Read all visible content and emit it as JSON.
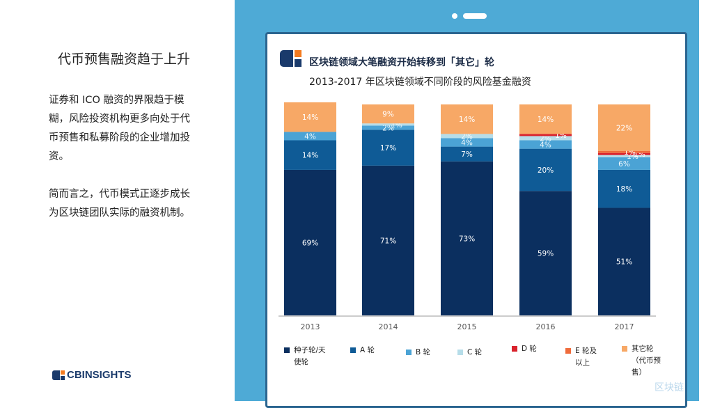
{
  "slide": {
    "title": "代币预售融资趋于上升",
    "para1": "证券和 ICO 融资的界限趋于模糊，风险投资机构更多向处于代币预售和私募阶段的企业增加投资。",
    "para2": "简而言之，代币模式正逐步成长为区块链团队实际的融资机制。",
    "logo_text": "CBINSIGHTS",
    "watermark": "区块链"
  },
  "chart_data": {
    "type": "bar",
    "stacked": true,
    "title": "区块链领域大笔融资开始转移到「其它」轮",
    "subtitle": "2013-2017 年区块链领域不同阶段的风险基金融资",
    "categories": [
      "2013",
      "2014",
      "2015",
      "2016",
      "2017"
    ],
    "ylim": [
      0,
      100
    ],
    "series": [
      {
        "name": "种子轮/天使轮",
        "color": "#0b2f5f",
        "values": [
          69,
          71,
          73,
          59,
          51
        ]
      },
      {
        "name": "A 轮",
        "color": "#0f5b96",
        "values": [
          14,
          17,
          7,
          20,
          18
        ]
      },
      {
        "name": "B 轮",
        "color": "#4ba3d5",
        "values": [
          4,
          2,
          4,
          4,
          6
        ]
      },
      {
        "name": "C 轮",
        "color": "#b6dde9",
        "values": [
          0,
          1,
          2,
          2,
          1
        ]
      },
      {
        "name": "D 轮",
        "color": "#d9232d",
        "values": [
          0,
          0,
          0,
          1,
          1
        ]
      },
      {
        "name": "E 轮及以上",
        "color": "#ef6b3b",
        "values": [
          0,
          0,
          0,
          0,
          1
        ]
      },
      {
        "name": "其它轮（代币预售）",
        "color": "#f7a866",
        "values": [
          14,
          9,
          14,
          14,
          22
        ]
      }
    ]
  }
}
